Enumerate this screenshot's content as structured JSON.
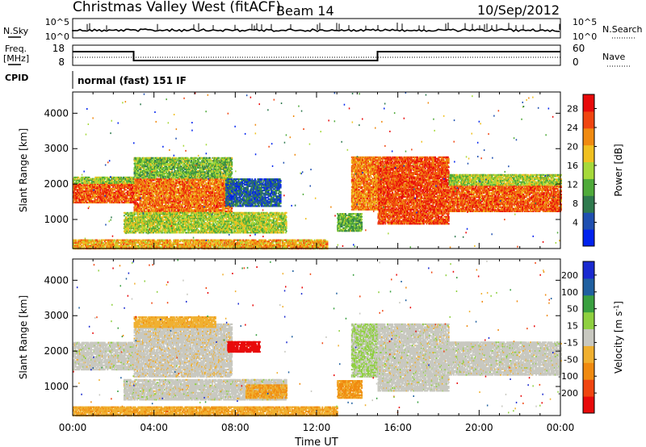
{
  "header": {
    "station": "Christmas Valley West (fitACF)",
    "beam": "Beam 14",
    "date": "10/Sep/2012"
  },
  "strip_panels": {
    "nsky": {
      "label": "N.Sky",
      "ticks": [
        "10^5",
        "10^0"
      ]
    },
    "nsearch": {
      "label": "N.Search",
      "ticks": [
        "10^5",
        "10^0"
      ]
    },
    "freq": {
      "label_line1": "Freq.",
      "label_line2": "[MHz]",
      "ticks": [
        "18",
        "8"
      ]
    },
    "nave": {
      "label": "Nave",
      "ticks": [
        "60",
        "0"
      ]
    },
    "cpid": {
      "label": "CPID",
      "value": "normal (fast) 151 IF"
    }
  },
  "chart_data": [
    {
      "type": "heatmap",
      "title": "",
      "xlabel": "Time UT",
      "ylabel": "Slant Range [km]",
      "x_ticks": [
        "00:00",
        "04:00",
        "08:00",
        "12:00",
        "16:00",
        "20:00",
        "00:00"
      ],
      "xlim_hours": [
        0,
        24
      ],
      "ylim": [
        180,
        4600
      ],
      "y_ticks": [
        1000,
        2000,
        3000,
        4000
      ],
      "colorbar": {
        "label": "Power [dB]",
        "ticks": [
          "4",
          "8",
          "12",
          "16",
          "20",
          "24",
          "28"
        ],
        "range": [
          0,
          30
        ],
        "colors": [
          "#0022ee",
          "#1f4fb0",
          "#2f7a4e",
          "#4faa3a",
          "#a6d93a",
          "#f0c020",
          "#f08a10",
          "#f04510",
          "#e80a0a"
        ]
      },
      "regions": [
        {
          "t0": 0.0,
          "t1": 3.0,
          "r0": 1500,
          "r1": 2050,
          "value": 24
        },
        {
          "t0": 0.0,
          "t1": 3.0,
          "r0": 2050,
          "r1": 2250,
          "value": 14
        },
        {
          "t0": 3.0,
          "t1": 7.8,
          "r0": 1250,
          "r1": 2200,
          "value": 23
        },
        {
          "t0": 3.0,
          "t1": 7.8,
          "r0": 2200,
          "r1": 2800,
          "value": 13
        },
        {
          "t0": 2.5,
          "t1": 10.5,
          "r0": 650,
          "r1": 1250,
          "value": 15
        },
        {
          "t0": 7.5,
          "t1": 10.2,
          "r0": 1400,
          "r1": 2200,
          "value": 6
        },
        {
          "t0": 13.0,
          "t1": 14.2,
          "r0": 700,
          "r1": 1200,
          "value": 12
        },
        {
          "t0": 13.7,
          "t1": 15.0,
          "r0": 1300,
          "r1": 2800,
          "value": 22
        },
        {
          "t0": 15.0,
          "t1": 18.5,
          "r0": 900,
          "r1": 2800,
          "value": 25
        },
        {
          "t0": 18.5,
          "t1": 24.0,
          "r0": 1250,
          "r1": 2000,
          "value": 24
        },
        {
          "t0": 18.5,
          "t1": 24.0,
          "r0": 2000,
          "r1": 2300,
          "value": 15
        },
        {
          "t0": 0.0,
          "t1": 12.5,
          "r0": 200,
          "r1": 450,
          "value": 20
        }
      ]
    },
    {
      "type": "heatmap",
      "title": "",
      "xlabel": "Time UT",
      "ylabel": "Slant Range [km]",
      "x_ticks": [
        "00:00",
        "04:00",
        "08:00",
        "12:00",
        "16:00",
        "20:00",
        "00:00"
      ],
      "xlim_hours": [
        0,
        24
      ],
      "ylim": [
        180,
        4600
      ],
      "y_ticks": [
        1000,
        2000,
        3000,
        4000
      ],
      "colorbar": {
        "label": "Velocity [m s^-1]",
        "ticks": [
          "200",
          "100",
          "50",
          "15",
          "-15",
          "-50",
          "-100",
          "-200"
        ],
        "range": [
          -250,
          250
        ],
        "colors": [
          "#e80a0a",
          "#f04510",
          "#f08a10",
          "#f0b030",
          "#c8c8c0",
          "#8fd040",
          "#3aa040",
          "#2060a0",
          "#1a2ad0"
        ]
      },
      "regions": [
        {
          "t0": 0.0,
          "t1": 3.0,
          "r0": 1500,
          "r1": 2300,
          "value": 0
        },
        {
          "t0": 3.0,
          "t1": 7.8,
          "r0": 1300,
          "r1": 2800,
          "value": -5
        },
        {
          "t0": 3.0,
          "t1": 7.0,
          "r0": 2700,
          "r1": 3000,
          "value": -60
        },
        {
          "t0": 7.6,
          "t1": 9.2,
          "r0": 2000,
          "r1": 2300,
          "value": -230
        },
        {
          "t0": 2.5,
          "t1": 10.5,
          "r0": 650,
          "r1": 1250,
          "value": 0
        },
        {
          "t0": 8.5,
          "t1": 10.5,
          "r0": 700,
          "r1": 1100,
          "value": -80
        },
        {
          "t0": 13.0,
          "t1": 14.2,
          "r0": 700,
          "r1": 1200,
          "value": -90
        },
        {
          "t0": 13.7,
          "t1": 15.0,
          "r0": 1300,
          "r1": 2800,
          "value": 30
        },
        {
          "t0": 15.0,
          "t1": 18.5,
          "r0": 900,
          "r1": 2800,
          "value": 0
        },
        {
          "t0": 18.5,
          "t1": 24.0,
          "r0": 1350,
          "r1": 2300,
          "value": 0
        },
        {
          "t0": 0.0,
          "t1": 13.0,
          "r0": 200,
          "r1": 450,
          "value": -70
        }
      ]
    }
  ]
}
